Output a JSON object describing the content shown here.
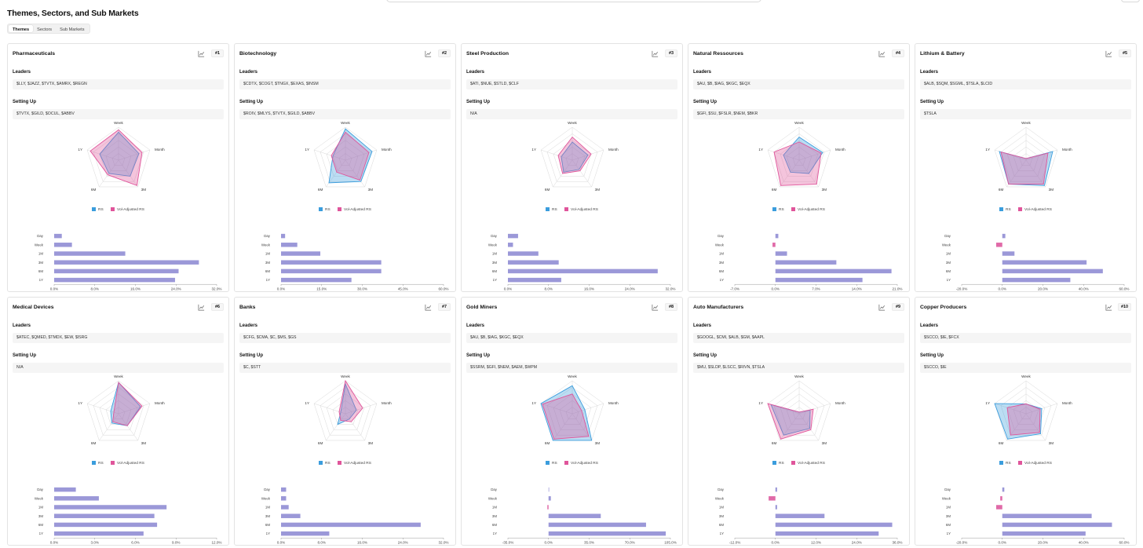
{
  "page": {
    "title": "Themes, Sectors, and Sub Markets"
  },
  "tabs": [
    {
      "label": "Themes",
      "active": true
    },
    {
      "label": "Sectors",
      "active": false
    },
    {
      "label": "Sub Markets",
      "active": false
    }
  ],
  "labels": {
    "leaders": "Leaders",
    "setting_up": "Setting Up",
    "legend_rs": "RS",
    "legend_vol": "Vol-Adjusted RS"
  },
  "colors": {
    "rs": "#3b9ddd",
    "vol": "#e0559b",
    "bar_pos": "#9b98d8",
    "bar_neg": "#e06aa8"
  },
  "radar_axes": [
    "Week",
    "Month",
    "3M",
    "6M",
    "1Y"
  ],
  "bar_categories": [
    "Day",
    "Week",
    "1M",
    "3M",
    "6M",
    "1Y"
  ],
  "cards": [
    {
      "title": "Pharmaceuticals",
      "rank": "#1",
      "leaders": "$LLY, $JAZZ, $TVTX, $AMRX, $REGN",
      "setting_up": "$TVTX, $GILD, $OCUL, $ABBV",
      "chart_data": {
        "type": "radar+bar",
        "radar": {
          "rs": [
            0.85,
            0.65,
            0.6,
            0.5,
            0.6
          ],
          "vol": [
            0.92,
            0.75,
            0.95,
            0.55,
            0.9
          ]
        },
        "bars": [
          1.5,
          3.5,
          14,
          28.5,
          24.5,
          23.8
        ],
        "ticks": [
          "0.0%",
          "8.0%",
          "16.0%",
          "24.0%",
          "32.0%"
        ],
        "min": 0,
        "max": 32
      }
    },
    {
      "title": "Biotechnology",
      "rank": "#2",
      "leaders": "$CDTX, $COGT, $TNGX, $EXAS, $INSM",
      "setting_up": "$ROIV, $MLYS, $TVTX, $GILD, $ABBV",
      "chart_data": {
        "type": "radar+bar",
        "radar": {
          "rs": [
            0.95,
            0.85,
            0.8,
            0.85,
            0.4
          ],
          "vol": [
            0.85,
            0.75,
            0.75,
            0.45,
            0.45
          ]
        },
        "bars": [
          1.5,
          6,
          14.5,
          37,
          37,
          26
        ],
        "ticks": [
          "0.0%",
          "15.0%",
          "30.0%",
          "45.0%",
          "60.0%"
        ],
        "min": 0,
        "max": 60
      }
    },
    {
      "title": "Steel Production",
      "rank": "#3",
      "leaders": "$ATI, $NUE, $STLD, $CLF",
      "setting_up": "N/A",
      "chart_data": {
        "type": "radar+bar",
        "radar": {
          "rs": [
            0.55,
            0.5,
            0.35,
            0.45,
            0.35
          ],
          "vol": [
            0.7,
            0.6,
            0.4,
            0.5,
            0.45
          ]
        },
        "bars": [
          2,
          1,
          6,
          10,
          29.5,
          10.5
        ],
        "ticks": [
          "0.0%",
          "8.0%",
          "16.0%",
          "24.0%",
          "32.0%"
        ],
        "min": 0,
        "max": 32
      }
    },
    {
      "title": "Natural Ressources",
      "rank": "#4",
      "leaders": "$AU, $B, $IAG, $KGC, $EQX",
      "setting_up": "$GFI, $SU, $FSLR, $NEM, $BKR",
      "chart_data": {
        "type": "radar+bar",
        "radar": {
          "rs": [
            0.7,
            0.75,
            0.5,
            0.45,
            0.5
          ],
          "vol": [
            0.55,
            0.7,
            0.9,
            0.95,
            0.8
          ]
        },
        "bars": [
          0.5,
          -0.5,
          2,
          10.5,
          20,
          15
        ],
        "ticks": [
          "-7.0%",
          "0.0%",
          "7.0%",
          "14.0%",
          "21.0%"
        ],
        "min": -7,
        "max": 21
      }
    },
    {
      "title": "Lithium & Battery",
      "rank": "#5",
      "leaders": "$ALB, $SQM, $SGML, $TSLA, $LCID",
      "setting_up": "$TSLA",
      "chart_data": {
        "type": "radar+bar",
        "radar": {
          "rs": [
            0.05,
            0.85,
            0.95,
            0.9,
            0.85
          ],
          "vol": [
            0.05,
            0.7,
            0.9,
            0.9,
            0.8
          ]
        },
        "bars": [
          1.5,
          -3,
          6,
          41.5,
          49.5,
          33.5
        ],
        "ticks": [
          "-20.0%",
          "0.0%",
          "20.0%",
          "40.0%",
          "60.0%"
        ],
        "min": -20,
        "max": 60
      }
    },
    {
      "title": "Medical Devices",
      "rank": "#6",
      "leaders": "$ATEC, $QMED, $TMDX, $EW, $ISRG",
      "setting_up": "N/A",
      "chart_data": {
        "type": "radar+bar",
        "radar": {
          "rs": [
            0.95,
            0.7,
            0.45,
            0.35,
            0.25
          ],
          "vol": [
            0.95,
            0.75,
            0.45,
            0.3,
            0.15
          ]
        },
        "bars": [
          1.6,
          3.3,
          8.3,
          7.4,
          7.6,
          6.6
        ],
        "ticks": [
          "0.0%",
          "3.0%",
          "6.0%",
          "9.0%",
          "12.0%"
        ],
        "min": 0,
        "max": 12
      }
    },
    {
      "title": "Banks",
      "rank": "#7",
      "leaders": "$CFG, $CMA, $C, $MS, $GS",
      "setting_up": "$C, $STT",
      "chart_data": {
        "type": "radar+bar",
        "radar": {
          "rs": [
            0.9,
            0.35,
            0.2,
            0.4,
            0.15
          ],
          "vol": [
            1.0,
            0.55,
            0.3,
            0.25,
            0.2
          ]
        },
        "bars": [
          1,
          1,
          1.5,
          3.8,
          27.5,
          9.5
        ],
        "ticks": [
          "0.0%",
          "8.0%",
          "16.0%",
          "24.0%",
          "32.0%"
        ],
        "min": 0,
        "max": 32
      }
    },
    {
      "title": "Gold Miners",
      "rank": "#8",
      "leaders": "$AU, $B, $IAG, $KGC, $EQX",
      "setting_up": "$SSRM, $GFI, $NEM, $AEM, $WPM",
      "chart_data": {
        "type": "radar+bar",
        "radar": {
          "rs": [
            0.85,
            0.4,
            1.0,
            1.0,
            1.0
          ],
          "vol": [
            0.6,
            0.3,
            0.85,
            0.95,
            0.95
          ]
        },
        "bars": [
          0.5,
          2,
          -1,
          45,
          84,
          101
        ],
        "ticks": [
          "-35.0%",
          "0.0%",
          "35.0%",
          "70.0%",
          "105.0%"
        ],
        "min": -35,
        "max": 105
      }
    },
    {
      "title": "Auto Manufacturers",
      "rank": "#9",
      "leaders": "$GOOGL, $CMI, $ALB, $GM, $AAPL",
      "setting_up": "$MU, $SLDP, $LSCC, $RIVN, $TSLA",
      "chart_data": {
        "type": "radar+bar",
        "radar": {
          "rs": [
            0.05,
            0.35,
            0.55,
            0.8,
            0.9
          ],
          "vol": [
            0.05,
            0.45,
            0.6,
            0.95,
            1.0
          ]
        },
        "bars": [
          0.5,
          -2,
          0.5,
          14.5,
          34.5,
          30.5
        ],
        "ticks": [
          "-12.0%",
          "0.0%",
          "12.0%",
          "24.0%",
          "36.0%"
        ],
        "min": -12,
        "max": 36
      }
    },
    {
      "title": "Copper Producers",
      "rank": "#10",
      "leaders": "$SCCO, $IE, $FCX",
      "setting_up": "$SCCO, $IE",
      "chart_data": {
        "type": "radar+bar",
        "radar": {
          "rs": [
            0.3,
            0.5,
            0.75,
            0.95,
            1.0
          ],
          "vol": [
            0.3,
            0.45,
            0.7,
            0.8,
            0.6
          ]
        },
        "bars": [
          1,
          -1,
          -3,
          44,
          54,
          41
        ],
        "ticks": [
          "-20.0%",
          "0.0%",
          "20.0%",
          "40.0%",
          "60.0%"
        ],
        "min": -20,
        "max": 60
      }
    }
  ]
}
